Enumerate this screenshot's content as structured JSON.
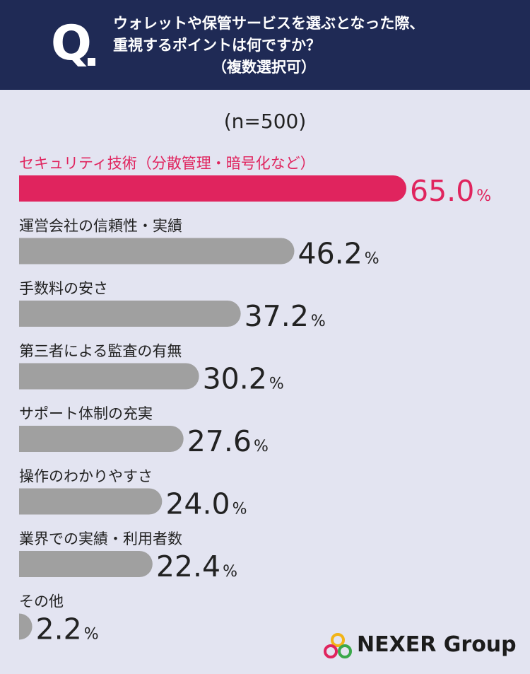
{
  "header": {
    "q_label": "Q",
    "question_lines": [
      "ウォレットや保管サービスを選ぶとなった際、",
      "重視するポイントは何ですか？",
      "（複数選択可）"
    ],
    "background": "#1f2a55"
  },
  "sample_size": "(n=500)",
  "chart_data": {
    "type": "bar",
    "orientation": "horizontal",
    "unit": "%",
    "categories": [
      "セキュリティ技術（分散管理・暗号化など）",
      "運営会社の信頼性・実績",
      "手数料の安さ",
      "第三者による監査の有無",
      "サポート体制の充実",
      "操作のわかりやすさ",
      "業界での実績・利用者数",
      "その他"
    ],
    "values": [
      65.0,
      46.2,
      37.2,
      30.2,
      27.6,
      24.0,
      22.4,
      2.2
    ],
    "value_labels": [
      "65.0",
      "46.2",
      "37.2",
      "30.2",
      "27.6",
      "24.0",
      "22.4",
      "2.2"
    ],
    "highlight_index": 0,
    "colors": {
      "highlight": "#e0245e",
      "default": "#a0a0a0",
      "text": "#222222"
    }
  },
  "logo": {
    "text": "NEXER Group"
  }
}
